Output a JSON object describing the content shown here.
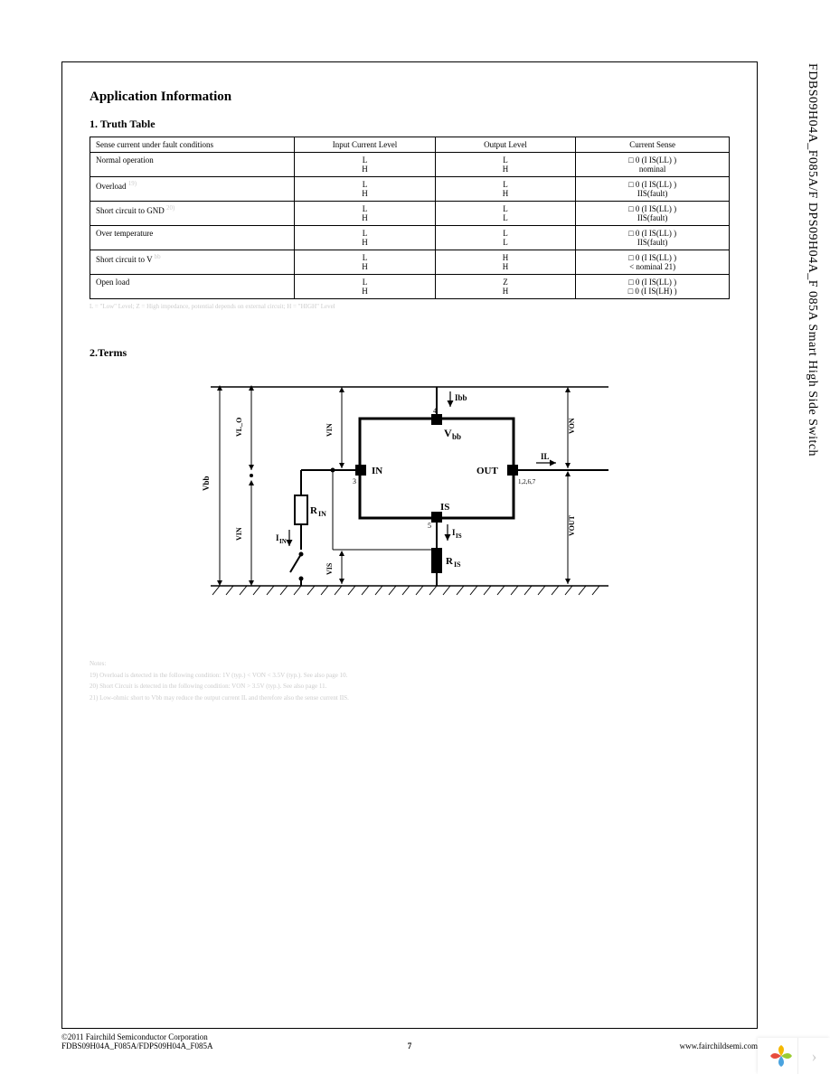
{
  "vertical_header": "FDBS09H04A_F085A/F   DPS09H04A_F   085A  Smart High Side Switch",
  "section_title": "Application Information",
  "truth_table": {
    "title": "1. Truth Table",
    "headers": [
      "Sense current under fault conditions",
      "Input Current Level",
      "Output Level",
      "Current Sense"
    ],
    "rows": [
      {
        "label": "Normal operation",
        "sup": "",
        "in": [
          "L",
          "H"
        ],
        "out": [
          "L",
          "H"
        ],
        "sense": [
          "□ 0 (I IS(LL) )",
          "nominal"
        ]
      },
      {
        "label": "Overload",
        "sup": "19)",
        "in": [
          "L",
          "H"
        ],
        "out": [
          "L",
          "H"
        ],
        "sense": [
          "□ 0 (I IS(LL) )",
          "IIS(fault)"
        ]
      },
      {
        "label": "Short circuit to GND",
        "sup": "20)",
        "in": [
          "L",
          "H"
        ],
        "out": [
          "L",
          "L"
        ],
        "sense": [
          "□ 0 (I IS(LL) )",
          "IIS(fault)"
        ]
      },
      {
        "label": "Over temperature",
        "sup": "",
        "in": [
          "L",
          "H"
        ],
        "out": [
          "L",
          "L"
        ],
        "sense": [
          "□ 0 (I IS(LL) )",
          "IIS(fault)"
        ]
      },
      {
        "label": "Short circuit to V",
        "sup": "bb",
        "in": [
          "L",
          "H"
        ],
        "out": [
          "H",
          "H"
        ],
        "sense": [
          "□ 0 (I IS(LL) )",
          "< nominal       21)"
        ],
        "sup2": "21)"
      },
      {
        "label": "Open load",
        "sup": "",
        "in": [
          "L",
          "H"
        ],
        "out": [
          "Z",
          "H"
        ],
        "sense": [
          "□ 0 (I IS(LL) )",
          "□ 0 (I IS(LH) )"
        ]
      }
    ],
    "footnote": "L = \"Low\" Level; Z = High impedance, potential depends on external circuit; H = \"HIGH\" Level"
  },
  "terms": {
    "title": "2.Terms",
    "labels": {
      "Vbb_arrow": "Ibb",
      "Vbb": "Vbb",
      "IN": "IN",
      "OUT": "OUT",
      "IS": "IS",
      "RIN": "RIN",
      "RIS": "RIS",
      "IL": "IL",
      "IIS": "IIS",
      "IIN": "IIN",
      "Vbb_left": "Vbb",
      "VIN": "VIN",
      "VIS": "VIS",
      "VON": "VON",
      "VOUT": "VOUT",
      "VL_O": "VL_O",
      "pin4": "4",
      "pin3": "3",
      "pin5": "5",
      "pin_out": "1,2,6,7"
    }
  },
  "notes": {
    "heading": "Notes:",
    "lines": [
      "19) Overload is detected in the following condition: 1V (typ.) < VON < 3.5V (typ.). See also page 10.",
      "20) Short Circuit is detected in the following condition: VON > 3.5V (typ.). See also page 11.",
      "21) Low-ohmic short to Vbb may reduce the output current IL and therefore also the sense current IIS."
    ]
  },
  "footer": {
    "copyright": "©2011 Fairchild Semiconductor Corporation",
    "part": "FDBS09H04A_F085A/FDPS09H04A_F085A",
    "page": "7",
    "url": "www.fairchildsemi.com"
  }
}
